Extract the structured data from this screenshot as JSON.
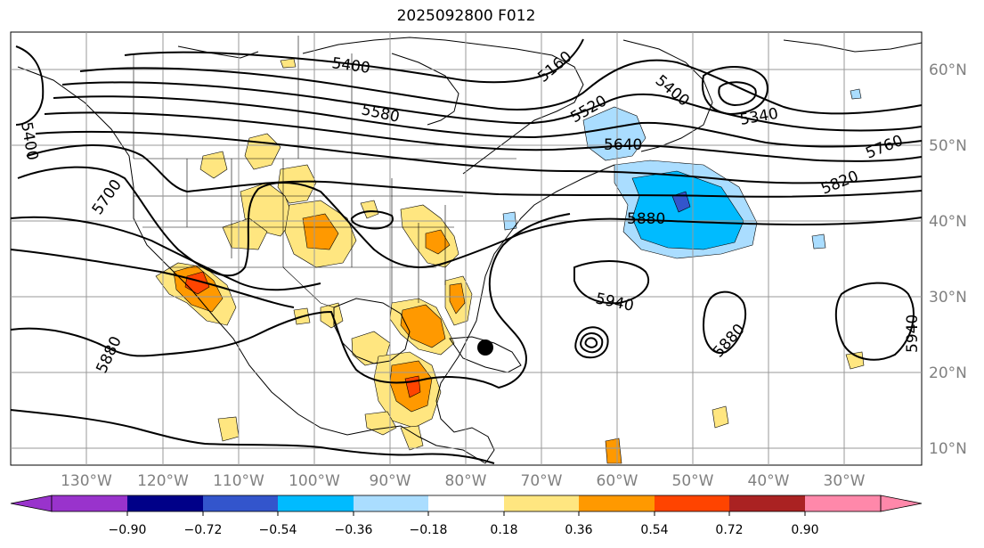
{
  "title": "2025092800 F012",
  "map": {
    "lon_labels": [
      "130°W",
      "120°W",
      "110°W",
      "100°W",
      "90°W",
      "80°W",
      "70°W",
      "60°W",
      "50°W",
      "40°W",
      "30°W"
    ],
    "lat_labels": [
      "60°N",
      "50°N",
      "40°N",
      "30°N",
      "20°N",
      "10°N"
    ],
    "contour_labels": [
      "5400",
      "5580",
      "5160",
      "5400",
      "5520",
      "5340",
      "5640",
      "5760",
      "5700",
      "5820",
      "5880",
      "5940",
      "5880",
      "5880",
      "5940",
      "5400"
    ],
    "grid_color": "#999999"
  },
  "colorbar": {
    "ticks": [
      "−0.90",
      "−0.72",
      "−0.54",
      "−0.36",
      "−0.18",
      "0.18",
      "0.36",
      "0.54",
      "0.72",
      "0.90"
    ],
    "colors": [
      "#9933cc",
      "#9933cc",
      "#000088",
      "#3355cc",
      "#00bbff",
      "#aaddff",
      "#ffffff",
      "#ffe680",
      "#ff9900",
      "#ff4400",
      "#aa2222",
      "#ff88aa",
      "#ff88aa"
    ]
  }
}
